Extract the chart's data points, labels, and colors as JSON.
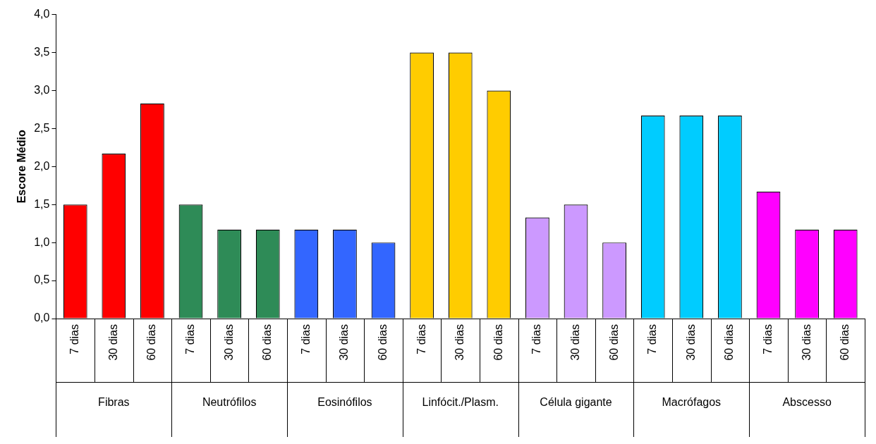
{
  "chart_data": {
    "type": "bar",
    "ylabel": "Escore Médio",
    "legend": false,
    "grid": false,
    "categories": [
      "7 dias",
      "30 dias",
      "60 dias",
      "7 dias",
      "30 dias",
      "60 dias",
      "7 dias",
      "30 dias",
      "60 dias",
      "7 dias",
      "30 dias",
      "60 dias",
      "7 dias",
      "30 dias",
      "60 dias",
      "7 dias",
      "30 dias",
      "60 dias",
      "7 dias",
      "30 dias",
      "60 dias"
    ],
    "values": [
      1.5,
      2.17,
      2.83,
      1.5,
      1.17,
      1.17,
      1.17,
      1.17,
      1.0,
      3.5,
      3.5,
      3.0,
      1.33,
      1.5,
      1.0,
      2.67,
      2.67,
      2.67,
      1.67,
      1.17,
      1.17
    ],
    "colors": [
      "#ff0000",
      "#ff0000",
      "#ff0000",
      "#2e8b57",
      "#2e8b57",
      "#2e8b57",
      "#3366ff",
      "#3366ff",
      "#3366ff",
      "#ffcc00",
      "#ffcc00",
      "#ffcc00",
      "#cc99ff",
      "#cc99ff",
      "#cc99ff",
      "#00ccff",
      "#00ccff",
      "#00ccff",
      "#ff00ff",
      "#ff00ff",
      "#ff00ff"
    ],
    "annotations": [
      "Fibras",
      "Neutrófilos",
      "Eosinófilos",
      "Linfócit./Plasm.",
      "Célula gigante",
      "Macrófagos",
      "Abscesso"
    ],
    "ylim": [
      0,
      4
    ],
    "yticks": [
      {
        "value": 0,
        "label": "0,0"
      },
      {
        "value": 0.5,
        "label": "0,5"
      },
      {
        "value": 1,
        "label": "1,0"
      },
      {
        "value": 1.5,
        "label": "1,5"
      },
      {
        "value": 2,
        "label": "2,0"
      },
      {
        "value": 2.5,
        "label": "2,5"
      },
      {
        "value": 3,
        "label": "3,0"
      },
      {
        "value": 3.5,
        "label": "3,5"
      },
      {
        "value": 4,
        "label": "4,0"
      }
    ]
  }
}
